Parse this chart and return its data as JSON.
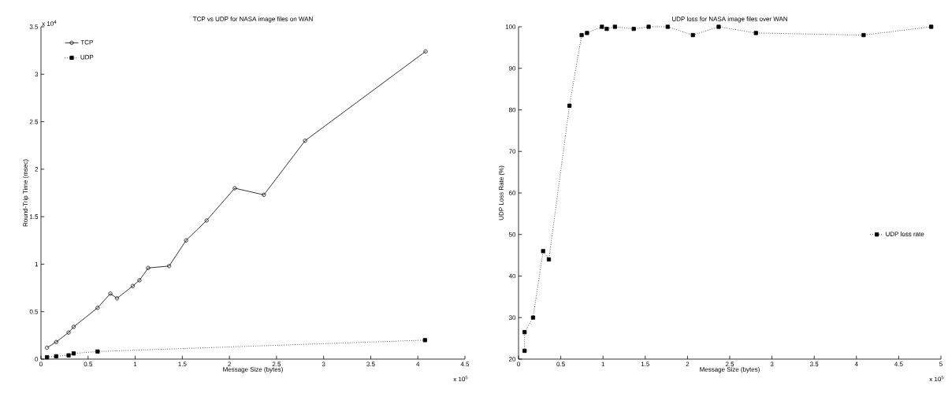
{
  "chart_data": [
    {
      "type": "line",
      "title": "TCP vs UDP for NASA image files on WAN",
      "xlabel": "Message Size (bytes)",
      "ylabel": "Round-Trip Time (msec)",
      "annotations": [
        "x 10$^{4}$",
        "x 10$^{5}$"
      ],
      "xlim": [
        0,
        4.5
      ],
      "ylim": [
        0,
        3.5
      ],
      "xticks": [
        0,
        0.5,
        1,
        1.5,
        2,
        2.5,
        3,
        3.5,
        4,
        4.5
      ],
      "yticks": [
        0,
        0.5,
        1,
        1.5,
        2,
        2.5,
        3,
        3.5
      ],
      "legend": "top left",
      "grid": false,
      "series": [
        {
          "name": "TCP",
          "color": "#000000",
          "marker": "circle",
          "line_style": "solid",
          "x": [
            0.064,
            0.161,
            0.293,
            0.347,
            0.601,
            0.736,
            0.807,
            0.974,
            1.045,
            1.138,
            1.36,
            1.54,
            1.758,
            2.057,
            2.366,
            2.803,
            4.082
          ],
          "values": [
            0.12,
            0.18,
            0.28,
            0.34,
            0.54,
            0.69,
            0.64,
            0.77,
            0.83,
            0.96,
            0.98,
            1.25,
            1.46,
            1.8,
            1.73,
            2.3,
            3.24
          ]
        },
        {
          "name": "UDP",
          "color": "#000000",
          "marker": "square",
          "line_style": "dotted",
          "x": [
            0.064,
            0.161,
            0.293,
            0.347,
            0.601,
            4.076
          ],
          "values": [
            0.02,
            0.03,
            0.04,
            0.06,
            0.08,
            0.2
          ]
        }
      ]
    },
    {
      "type": "line",
      "title": "UDP loss for NASA image files over WAN",
      "xlabel": "Message Size (bytes)",
      "ylabel": "UDP Loss Rate (%)",
      "annotations": [
        "x 10$^{5}$"
      ],
      "xlim": [
        0,
        5
      ],
      "ylim": [
        20,
        100
      ],
      "xticks": [
        0,
        0.5,
        1,
        1.5,
        2,
        2.5,
        3,
        3.5,
        4,
        4.5,
        5
      ],
      "yticks": [
        20,
        30,
        40,
        50,
        60,
        70,
        80,
        90,
        100
      ],
      "legend": "right",
      "grid": false,
      "series": [
        {
          "name": "UDP loss rate",
          "color": "#000000",
          "marker": "square",
          "line_style": "dotted",
          "x": [
            0.072,
            0.072,
            0.172,
            0.291,
            0.359,
            0.603,
            0.747,
            0.811,
            0.987,
            1.044,
            1.141,
            1.364,
            1.54,
            1.766,
            2.064,
            2.369,
            2.81,
            4.085,
            4.885
          ],
          "values": [
            22,
            26.5,
            30,
            46,
            44,
            81,
            98,
            98.5,
            100,
            99.5,
            100,
            99.5,
            100,
            100,
            98,
            100,
            98.5,
            98,
            100
          ]
        }
      ]
    }
  ]
}
